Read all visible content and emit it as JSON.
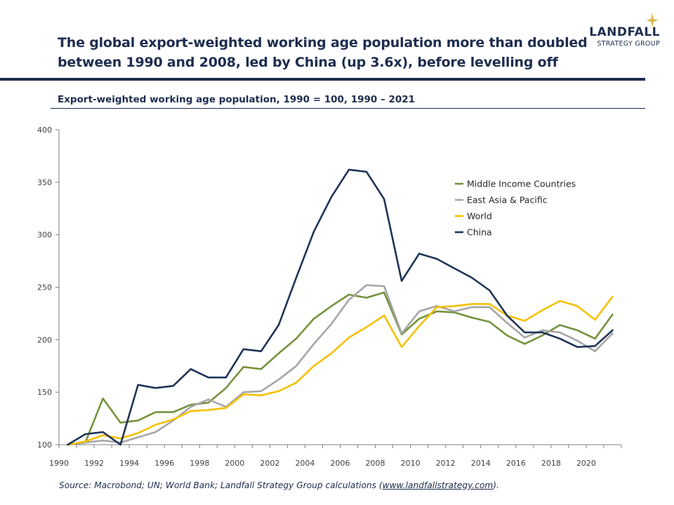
{
  "headline": {
    "line1": "The global export-weighted working age population more than doubled",
    "line2": "between 1990 and 2008, led by China (up 3.6x), before levelling off"
  },
  "logo": {
    "name": "LANDFALL",
    "sub": "STRATEGY GROUP"
  },
  "subtitle": "Export-weighted working age population, 1990 = 100, 1990 – 2021",
  "source": {
    "prefix": "Source: Macrobond; UN; World Bank; Landfall Strategy Group calculations (",
    "link": "www.landfallstrategy.com",
    "suffix": ")."
  },
  "colors": {
    "navy": "#1d2d4f",
    "gold": "#d9b84a"
  },
  "chart_data": {
    "type": "line",
    "title": "Export-weighted working age population, 1990 = 100, 1990 – 2021",
    "xlabel": "",
    "ylabel": "",
    "xlim": [
      1990,
      2022
    ],
    "ylim": [
      100,
      400
    ],
    "x_ticks": [
      "1990",
      "1992",
      "1994",
      "1996",
      "1998",
      "2000",
      "2002",
      "2004",
      "2006",
      "2008",
      "2010",
      "2012",
      "2014",
      "2016",
      "2018",
      "2020"
    ],
    "y_ticks": [
      "100",
      "150",
      "200",
      "250",
      "300",
      "350",
      "400"
    ],
    "legend_position": "right",
    "x": [
      1990.5,
      1991.5,
      1992.5,
      1993.5,
      1994.5,
      1995.5,
      1996.5,
      1997.5,
      1998.5,
      1999.5,
      2000.5,
      2001.5,
      2002.5,
      2003.5,
      2004.5,
      2005.5,
      2006.5,
      2007.5,
      2008.5,
      2009.5,
      2010.5,
      2011.5,
      2012.5,
      2013.5,
      2014.5,
      2015.5,
      2016.5,
      2017.5,
      2018.5,
      2019.5,
      2020.5,
      2021.5
    ],
    "series": [
      {
        "name": "Middle Income Countries",
        "color": "#76923c",
        "values": [
          100,
          102,
          144,
          121,
          123,
          131,
          131,
          138,
          140,
          154,
          174,
          172,
          187,
          201,
          220,
          232,
          243,
          240,
          245,
          205,
          220,
          227,
          226,
          221,
          217,
          204,
          196,
          204,
          214,
          209,
          201,
          224
        ]
      },
      {
        "name": "East Asia & Pacific",
        "color": "#a6a6a6",
        "values": [
          100,
          102,
          104,
          102,
          107,
          112,
          123,
          136,
          143,
          136,
          150,
          151,
          162,
          175,
          196,
          215,
          238,
          252,
          251,
          206,
          227,
          232,
          227,
          231,
          231,
          216,
          202,
          209,
          207,
          199,
          189,
          206
        ]
      },
      {
        "name": "World",
        "color": "#f5c000",
        "values": [
          100,
          103,
          109,
          106,
          111,
          119,
          124,
          132,
          133,
          135,
          148,
          147,
          151,
          159,
          175,
          187,
          202,
          212,
          223,
          193,
          213,
          231,
          232,
          234,
          234,
          223,
          218,
          228,
          237,
          232,
          219,
          241
        ]
      },
      {
        "name": "China",
        "color": "#1f3458",
        "values": [
          100,
          110,
          112,
          100,
          157,
          154,
          156,
          172,
          164,
          164,
          191,
          189,
          214,
          259,
          303,
          336,
          362,
          360,
          334,
          256,
          282,
          277,
          268,
          259,
          247,
          223,
          207,
          207,
          201,
          193,
          194,
          209
        ]
      }
    ]
  }
}
